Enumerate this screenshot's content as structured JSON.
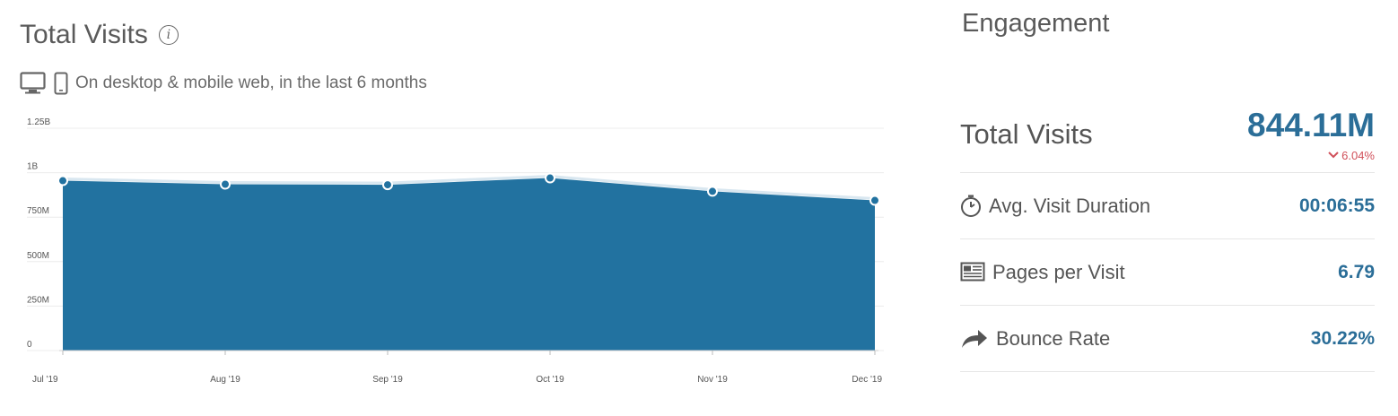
{
  "header": {
    "title": "Total Visits",
    "info_icon": "info-icon",
    "subtitle": "On desktop & mobile web, in the last 6 months",
    "device_icons": [
      "desktop-icon",
      "mobile-icon"
    ]
  },
  "chart_data": {
    "type": "area",
    "categories": [
      "Jul '19",
      "Aug '19",
      "Sep '19",
      "Oct '19",
      "Nov '19",
      "Dec '19"
    ],
    "values": [
      955000000,
      935000000,
      932000000,
      970000000,
      895000000,
      844110000
    ],
    "y_ticks": [
      "0",
      "250M",
      "500M",
      "750M",
      "1B",
      "1.25B"
    ],
    "y_tick_values": [
      0,
      250000000,
      500000000,
      750000000,
      1000000000,
      1250000000
    ],
    "ylim": [
      0,
      1250000000
    ],
    "grid": true,
    "color": "#2272a0"
  },
  "engagement": {
    "title": "Engagement",
    "total_visits": {
      "label": "Total Visits",
      "value": "844.11M",
      "change": "6.04%",
      "change_direction": "down",
      "change_color": "#d0505a"
    },
    "metrics": [
      {
        "icon": "stopwatch-icon",
        "label": "Avg. Visit Duration",
        "value": "00:06:55"
      },
      {
        "icon": "pages-icon",
        "label": "Pages per Visit",
        "value": "6.79"
      },
      {
        "icon": "bounce-arrow-icon",
        "label": "Bounce Rate",
        "value": "30.22%"
      }
    ],
    "accent_color": "#2b6e98"
  }
}
